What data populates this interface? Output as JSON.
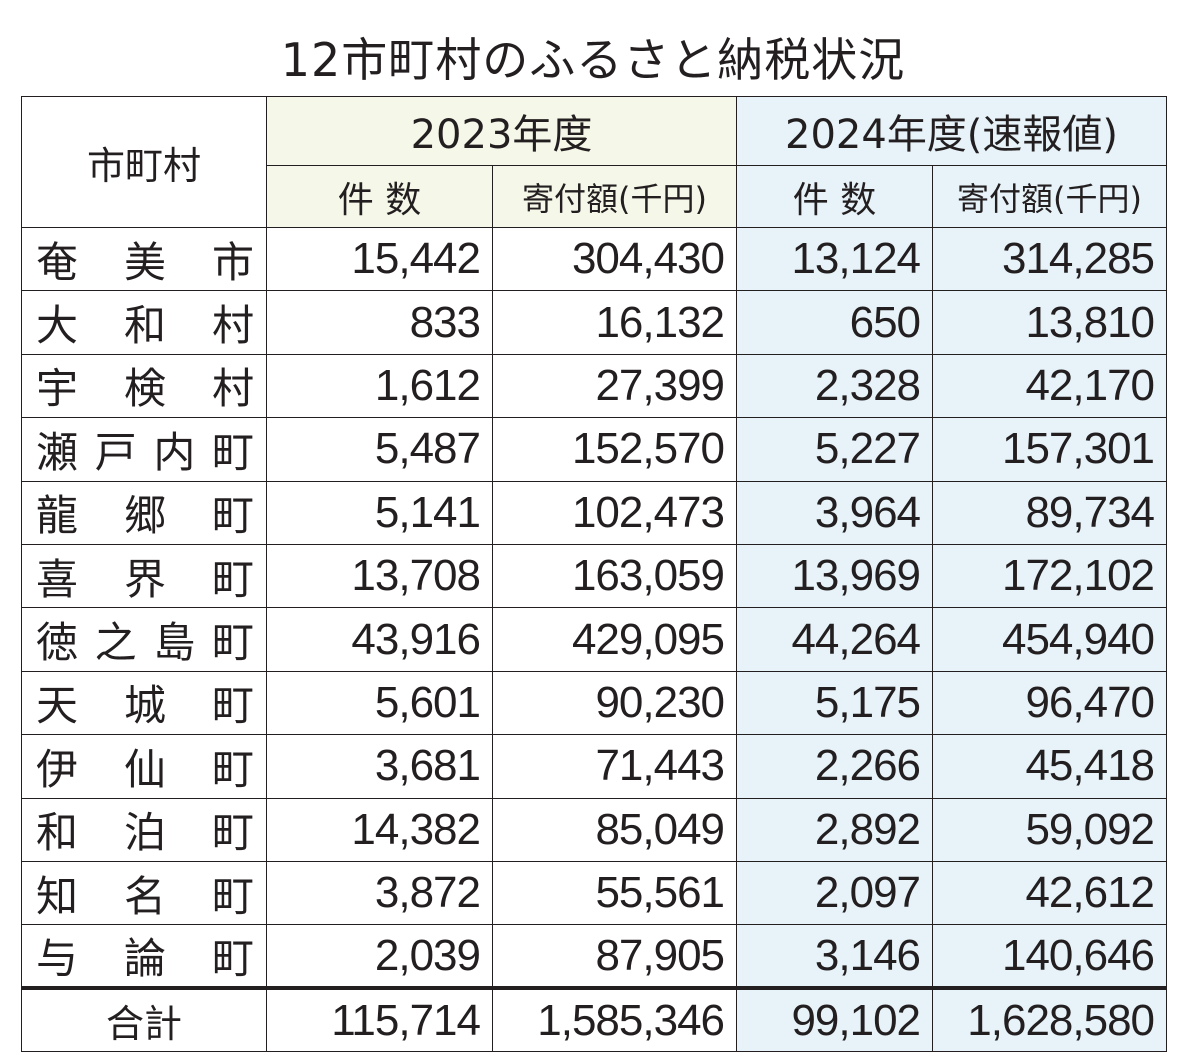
{
  "title": "12市町村のふるさと納税状況",
  "header": {
    "municipality": "市町村",
    "year_2023": "2023年度",
    "year_2024": "2024年度(速報値)",
    "count": "件  数",
    "amount": "寄付額(千円)"
  },
  "rows": [
    {
      "name": "奄美市",
      "c2023": "15,442",
      "a2023": "304,430",
      "c2024": "13,124",
      "a2024": "314,285"
    },
    {
      "name": "大和村",
      "c2023": "833",
      "a2023": "16,132",
      "c2024": "650",
      "a2024": "13,810"
    },
    {
      "name": "宇検村",
      "c2023": "1,612",
      "a2023": "27,399",
      "c2024": "2,328",
      "a2024": "42,170"
    },
    {
      "name": "瀬戸内町",
      "c2023": "5,487",
      "a2023": "152,570",
      "c2024": "5,227",
      "a2024": "157,301"
    },
    {
      "name": "龍郷町",
      "c2023": "5,141",
      "a2023": "102,473",
      "c2024": "3,964",
      "a2024": "89,734"
    },
    {
      "name": "喜界町",
      "c2023": "13,708",
      "a2023": "163,059",
      "c2024": "13,969",
      "a2024": "172,102"
    },
    {
      "name": "徳之島町",
      "c2023": "43,916",
      "a2023": "429,095",
      "c2024": "44,264",
      "a2024": "454,940"
    },
    {
      "name": "天城町",
      "c2023": "5,601",
      "a2023": "90,230",
      "c2024": "5,175",
      "a2024": "96,470"
    },
    {
      "name": "伊仙町",
      "c2023": "3,681",
      "a2023": "71,443",
      "c2024": "2,266",
      "a2024": "45,418"
    },
    {
      "name": "和泊町",
      "c2023": "14,382",
      "a2023": "85,049",
      "c2024": "2,892",
      "a2024": "59,092"
    },
    {
      "name": "知名町",
      "c2023": "3,872",
      "a2023": "55,561",
      "c2024": "2,097",
      "a2024": "42,612"
    },
    {
      "name": "与論町",
      "c2023": "2,039",
      "a2023": "87,905",
      "c2024": "3,146",
      "a2024": "140,646"
    }
  ],
  "total": {
    "name": "合計",
    "c2023": "115,714",
    "a2023": "1,585,346",
    "c2024": "99,102",
    "a2024": "1,628,580"
  },
  "colors": {
    "bg_2023": "#f5f7e9",
    "bg_2024": "#e7f3f9",
    "ink": "#231f20"
  }
}
